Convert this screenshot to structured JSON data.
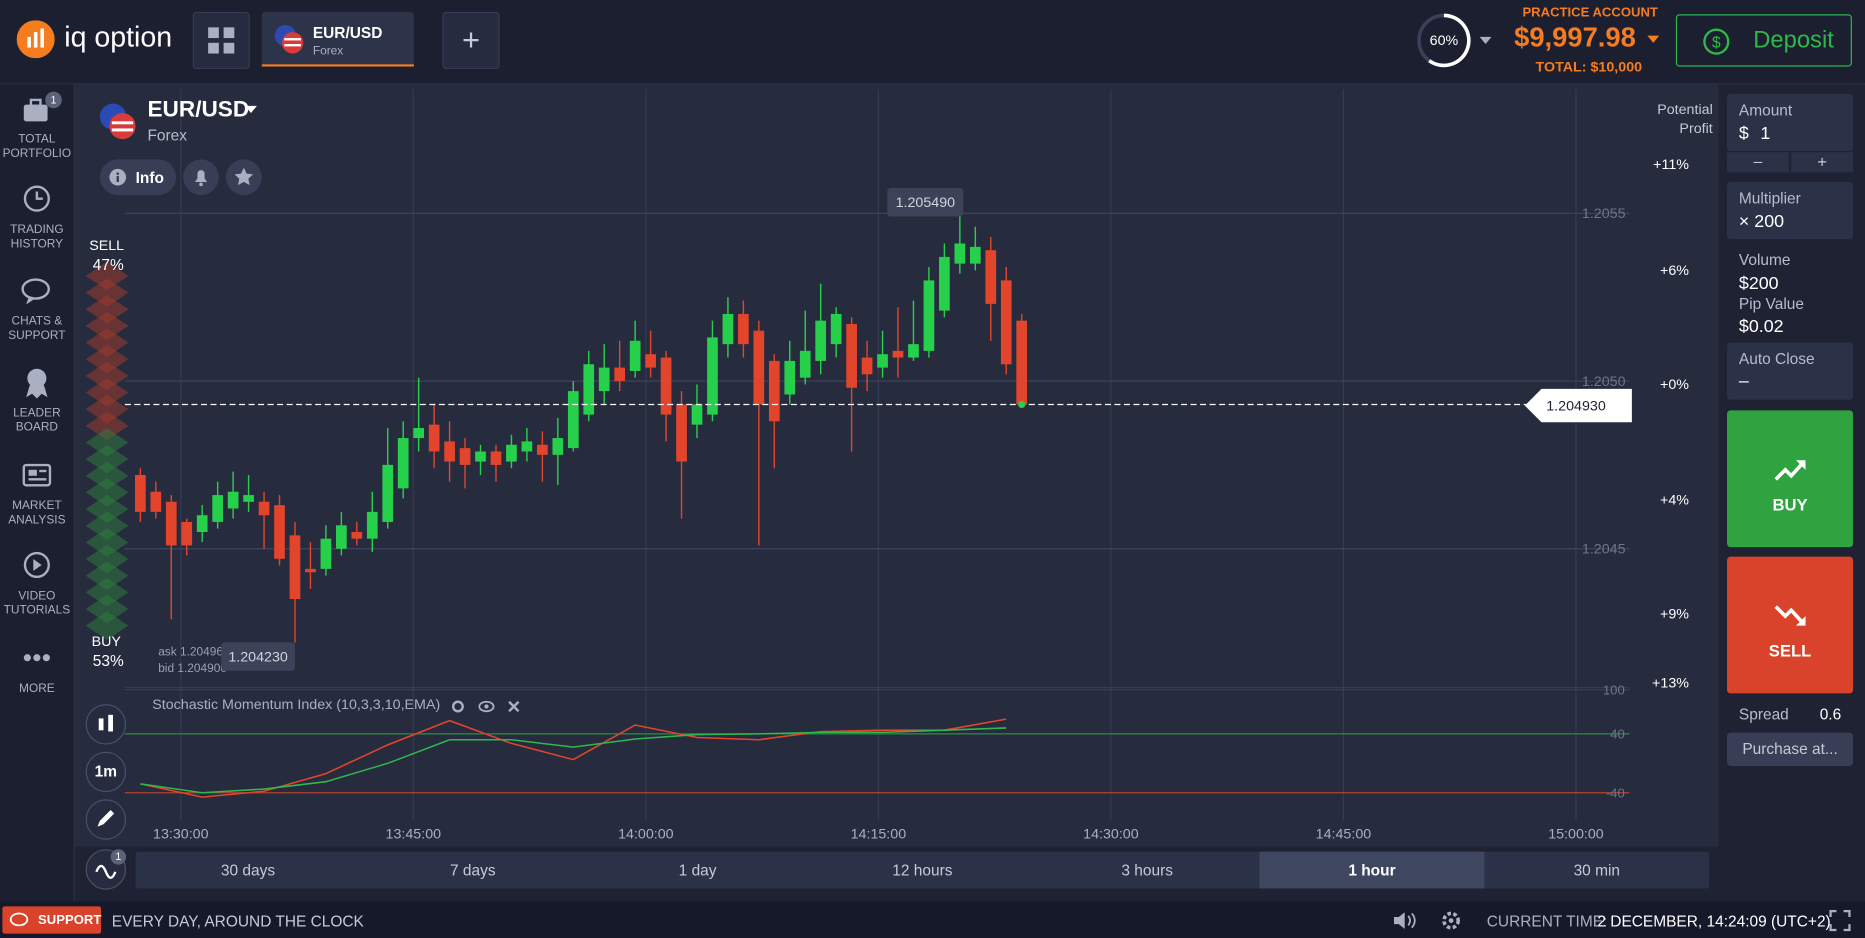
{
  "header": {
    "logo": "iq option",
    "asset": "EUR/USD",
    "asset_type": "Forex",
    "add": "+",
    "progress": "60%",
    "account_type": "PRACTICE ACCOUNT",
    "balance": "$9,997.98",
    "total": "TOTAL: $10,000",
    "deposit": "Deposit"
  },
  "sidebar": [
    {
      "label": "TOTAL PORTFOLIO",
      "badge": "1"
    },
    {
      "label": "TRADING HISTORY"
    },
    {
      "label": "CHATS & SUPPORT"
    },
    {
      "label": "LEADER BOARD"
    },
    {
      "label": "MARKET ANALYSIS"
    },
    {
      "label": "VIDEO TUTORIALS"
    },
    {
      "label": "MORE"
    }
  ],
  "asset_panel": {
    "name": "EUR/USD",
    "type": "Forex",
    "info": "Info"
  },
  "sentiment": {
    "sell_label": "SELL",
    "sell": "47%",
    "buy_label": "BUY",
    "buy": "53%"
  },
  "quotes": {
    "ask": "ask 1.204960",
    "bid": "bid 1.204900",
    "high": "1.205490",
    "low": "1.204230",
    "current": "1.204930"
  },
  "chart_data": {
    "type": "candlestick",
    "up_color": "#27d04a",
    "down_color": "#e2452b",
    "ylim": [
      1.20409,
      1.20587
    ],
    "yticks": [
      1.2045,
      {
        "value": 1.205,
        "label": "1.2050"
      },
      1.2055
    ],
    "grid": true,
    "xticks": [
      "13:30:00",
      "13:45:00",
      "14:00:00",
      "14:15:00",
      "14:30:00",
      "14:45:00",
      "15:00:00"
    ],
    "open": [
      1.20472,
      1.20467,
      1.20464,
      1.20458,
      1.20455,
      1.20458,
      1.20462,
      1.20464,
      1.20464,
      1.20463,
      1.20454,
      1.20444,
      1.20444,
      1.2045,
      1.20455,
      1.20453,
      1.20458,
      1.20468,
      1.20483,
      1.20487,
      1.20482,
      1.2048,
      1.20476,
      1.20479,
      1.20476,
      1.20479,
      1.20481,
      1.20478,
      1.2048,
      1.2049,
      1.20497,
      1.20504,
      1.20503,
      1.20508,
      1.20507,
      1.20493,
      1.20487,
      1.2049,
      1.20511,
      1.2052,
      1.20515,
      1.20506,
      1.20496,
      1.20501,
      1.20506,
      1.20511,
      1.20517,
      1.20507,
      1.20504,
      1.20509,
      1.20507,
      1.20509,
      1.20521,
      1.20535,
      1.20535,
      1.20539,
      1.2053,
      1.20518
    ],
    "high": [
      1.20474,
      1.2047,
      1.20466,
      1.20459,
      1.20463,
      1.2047,
      1.20473,
      1.20472,
      1.20467,
      1.20466,
      1.20458,
      1.20452,
      1.20457,
      1.20461,
      1.20458,
      1.20467,
      1.20486,
      1.20488,
      1.20501,
      1.20493,
      1.20488,
      1.20483,
      1.20481,
      1.20481,
      1.20484,
      1.20486,
      1.20485,
      1.20489,
      1.205,
      1.20509,
      1.20511,
      1.20512,
      1.20518,
      1.20515,
      1.20509,
      1.20497,
      1.20499,
      1.20518,
      1.20525,
      1.20524,
      1.20518,
      1.20508,
      1.20512,
      1.20521,
      1.20529,
      1.20522,
      1.20519,
      1.20512,
      1.20515,
      1.20522,
      1.20524,
      1.20534,
      1.20541,
      1.2055,
      1.20546,
      1.20543,
      1.20534,
      1.2052
    ],
    "low": [
      1.20458,
      1.20459,
      1.20429,
      1.20448,
      1.20452,
      1.20456,
      1.20459,
      1.20461,
      1.2045,
      1.20445,
      1.20422,
      1.20438,
      1.20442,
      1.20448,
      1.20451,
      1.20449,
      1.20456,
      1.20465,
      1.20479,
      1.20474,
      1.2047,
      1.20468,
      1.20472,
      1.2047,
      1.20474,
      1.20476,
      1.2047,
      1.20469,
      1.20479,
      1.20488,
      1.20493,
      1.20497,
      1.20501,
      1.20501,
      1.20482,
      1.20459,
      1.20483,
      1.20488,
      1.20507,
      1.20507,
      1.20451,
      1.20474,
      1.20493,
      1.20499,
      1.20502,
      1.20507,
      1.20479,
      1.20497,
      1.20501,
      1.20501,
      1.20506,
      1.20507,
      1.20519,
      1.20532,
      1.20533,
      1.20512,
      1.20502,
      1.20492
    ],
    "close": [
      1.20461,
      1.20461,
      1.20451,
      1.20451,
      1.2046,
      1.20466,
      1.20467,
      1.20466,
      1.2046,
      1.20447,
      1.20435,
      1.20443,
      1.20453,
      1.20457,
      1.20453,
      1.20461,
      1.20475,
      1.20483,
      1.20486,
      1.20479,
      1.20476,
      1.20475,
      1.20479,
      1.20475,
      1.20481,
      1.20482,
      1.20478,
      1.20483,
      1.20497,
      1.20505,
      1.20504,
      1.205,
      1.20512,
      1.20504,
      1.2049,
      1.20476,
      1.20493,
      1.20513,
      1.2052,
      1.20511,
      1.20493,
      1.20488,
      1.20506,
      1.20509,
      1.20518,
      1.2052,
      1.20498,
      1.20502,
      1.20508,
      1.20507,
      1.20511,
      1.2053,
      1.20537,
      1.20541,
      1.2054,
      1.20523,
      1.20505,
      1.20493
    ]
  },
  "profit": {
    "label": "Potential Profit",
    "levels": [
      "+11%",
      "+6%",
      "+0%",
      "+4%",
      "+9%",
      "+13%"
    ]
  },
  "oscillator": {
    "title": "Stochastic Momentum Index (10,3,3,10,EMA)",
    "ylim": [
      -78,
      103
    ],
    "yticks": [
      100,
      40,
      -40
    ],
    "series": [
      {
        "color": "#e2452b",
        "values": [
          -28,
          -46,
          -38,
          -14,
          25,
          58,
          27,
          5,
          52,
          35,
          32,
          43,
          45,
          45,
          60
        ]
      },
      {
        "color": "#2fb84a",
        "values": [
          -28,
          -40,
          -35,
          -25,
          0,
          32,
          32,
          22,
          33,
          39,
          40,
          42,
          42,
          45,
          48
        ]
      }
    ]
  },
  "periods": {
    "items": [
      "30 days",
      "7 days",
      "1 day",
      "12 hours",
      "3 hours",
      "1 hour",
      "30 min"
    ],
    "active": 5
  },
  "tools": {
    "timeframe": "1m",
    "badge": "1"
  },
  "trade": {
    "amount_label": "Amount",
    "currency": "$",
    "amount": "1",
    "minus": "–",
    "plus": "+",
    "multiplier_label": "Multiplier",
    "multiplier": "× 200",
    "volume_label": "Volume",
    "volume": "$200",
    "pip_label": "Pip Value",
    "pip": "$0.02",
    "auto_close_label": "Auto Close",
    "auto_close": "–",
    "buy": "BUY",
    "sell": "SELL",
    "spread_label": "Spread",
    "spread": "0.6",
    "purchase": "Purchase at..."
  },
  "footer": {
    "support": "SUPPORT",
    "slogan": "EVERY DAY, AROUND THE CLOCK",
    "time_label": "CURRENT TIME:",
    "time": "2 DECEMBER, 14:24:09 (UTC+2)"
  }
}
